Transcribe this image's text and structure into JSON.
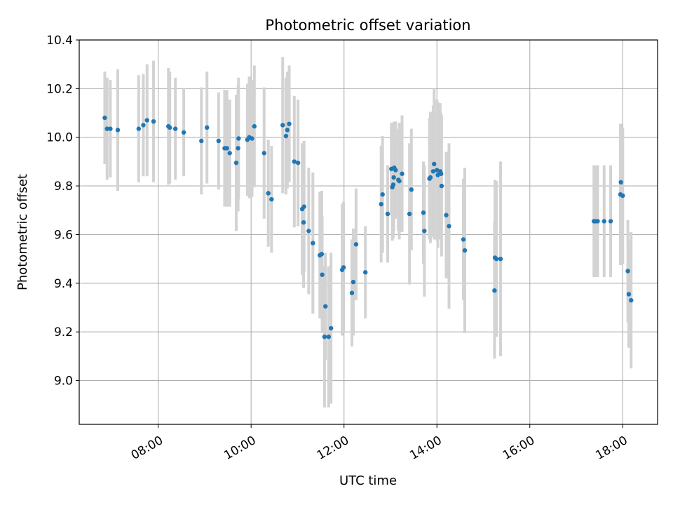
{
  "chart_data": {
    "type": "scatter",
    "title": "Photometric offset variation",
    "xlabel": "UTC time",
    "ylabel": "Photometric offset",
    "x_unit": "hours UTC",
    "xlim": [
      6.3,
      18.75
    ],
    "ylim": [
      8.82,
      10.4
    ],
    "x_ticks": [
      {
        "value": 8,
        "label": "08:00"
      },
      {
        "value": 10,
        "label": "10:00"
      },
      {
        "value": 12,
        "label": "12:00"
      },
      {
        "value": 14,
        "label": "14:00"
      },
      {
        "value": 16,
        "label": "16:00"
      },
      {
        "value": 18,
        "label": "18:00"
      }
    ],
    "y_ticks": [
      {
        "value": 9.0,
        "label": "9.0"
      },
      {
        "value": 9.2,
        "label": "9.2"
      },
      {
        "value": 9.4,
        "label": "9.4"
      },
      {
        "value": 9.6,
        "label": "9.6"
      },
      {
        "value": 9.8,
        "label": "9.8"
      },
      {
        "value": 10.0,
        "label": "10.0"
      },
      {
        "value": 10.2,
        "label": "10.2"
      },
      {
        "value": 10.4,
        "label": "10.4"
      }
    ],
    "grid": true,
    "point_color": "#1f77b4",
    "errorbar_color": "#d3d3d3",
    "points": [
      [
        6.85,
        10.08,
        0.19
      ],
      [
        6.9,
        10.035,
        0.21
      ],
      [
        6.97,
        10.035,
        0.2
      ],
      [
        7.13,
        10.03,
        0.25
      ],
      [
        7.58,
        10.035,
        0.22
      ],
      [
        7.68,
        10.05,
        0.21
      ],
      [
        7.76,
        10.07,
        0.23
      ],
      [
        7.9,
        10.065,
        0.25
      ],
      [
        8.22,
        10.045,
        0.24
      ],
      [
        8.25,
        10.04,
        0.23
      ],
      [
        8.37,
        10.035,
        0.21
      ],
      [
        8.55,
        10.02,
        0.18
      ],
      [
        8.93,
        9.985,
        0.22
      ],
      [
        9.05,
        10.04,
        0.23
      ],
      [
        9.3,
        9.985,
        0.2
      ],
      [
        9.43,
        9.955,
        0.24
      ],
      [
        9.48,
        9.955,
        0.24
      ],
      [
        9.54,
        9.935,
        0.22
      ],
      [
        9.68,
        9.895,
        0.28
      ],
      [
        9.72,
        9.955,
        0.26
      ],
      [
        9.73,
        9.995,
        0.25
      ],
      [
        9.92,
        9.99,
        0.23
      ],
      [
        9.96,
        10.0,
        0.25
      ],
      [
        10.02,
        9.995,
        0.24
      ],
      [
        10.07,
        10.045,
        0.25
      ],
      [
        10.28,
        9.935,
        0.27
      ],
      [
        10.37,
        9.77,
        0.22
      ],
      [
        10.44,
        9.745,
        0.22
      ],
      [
        10.68,
        10.05,
        0.28
      ],
      [
        10.75,
        10.005,
        0.24
      ],
      [
        10.78,
        10.03,
        0.24
      ],
      [
        10.82,
        10.055,
        0.24
      ],
      [
        10.93,
        9.9,
        0.27
      ],
      [
        11.01,
        9.895,
        0.26
      ],
      [
        11.1,
        9.705,
        0.27
      ],
      [
        11.14,
        9.715,
        0.27
      ],
      [
        11.13,
        9.65,
        0.27
      ],
      [
        11.24,
        9.615,
        0.26
      ],
      [
        11.33,
        9.565,
        0.29
      ],
      [
        11.48,
        9.515,
        0.26
      ],
      [
        11.52,
        9.52,
        0.26
      ],
      [
        11.53,
        9.435,
        0.24
      ],
      [
        11.6,
        9.305,
        0.22
      ],
      [
        11.58,
        9.18,
        0.29
      ],
      [
        11.67,
        9.18,
        0.29
      ],
      [
        11.72,
        9.215,
        0.31
      ],
      [
        11.96,
        9.455,
        0.27
      ],
      [
        11.99,
        9.465,
        0.27
      ],
      [
        12.17,
        9.36,
        0.22
      ],
      [
        12.2,
        9.405,
        0.22
      ],
      [
        12.26,
        9.56,
        0.23
      ],
      [
        12.46,
        9.445,
        0.19
      ],
      [
        12.8,
        9.725,
        0.24
      ],
      [
        12.83,
        9.765,
        0.24
      ],
      [
        12.94,
        9.685,
        0.2
      ],
      [
        13.02,
        9.87,
        0.19
      ],
      [
        13.04,
        9.795,
        0.22
      ],
      [
        13.06,
        9.805,
        0.22
      ],
      [
        13.07,
        9.835,
        0.22
      ],
      [
        13.08,
        9.875,
        0.19
      ],
      [
        13.11,
        9.865,
        0.2
      ],
      [
        13.17,
        9.825,
        0.21
      ],
      [
        13.19,
        9.82,
        0.24
      ],
      [
        13.25,
        9.85,
        0.24
      ],
      [
        13.41,
        9.685,
        0.29
      ],
      [
        13.45,
        9.785,
        0.25
      ],
      [
        13.71,
        9.69,
        0.21
      ],
      [
        13.73,
        9.615,
        0.27
      ],
      [
        13.84,
        9.83,
        0.25
      ],
      [
        13.86,
        9.835,
        0.27
      ],
      [
        13.92,
        9.86,
        0.27
      ],
      [
        13.94,
        9.89,
        0.31
      ],
      [
        14.0,
        9.865,
        0.29
      ],
      [
        14.02,
        9.845,
        0.3
      ],
      [
        14.07,
        9.86,
        0.28
      ],
      [
        14.09,
        9.85,
        0.25
      ],
      [
        14.1,
        9.8,
        0.29
      ],
      [
        14.2,
        9.68,
        0.26
      ],
      [
        14.26,
        9.635,
        0.34
      ],
      [
        14.57,
        9.58,
        0.25
      ],
      [
        14.6,
        9.535,
        0.34
      ],
      [
        15.24,
        9.37,
        0.28
      ],
      [
        15.25,
        9.505,
        0.32
      ],
      [
        15.28,
        9.5,
        0.32
      ],
      [
        15.37,
        9.5,
        0.4
      ],
      [
        17.38,
        9.655,
        0.23
      ],
      [
        17.41,
        9.655,
        0.23
      ],
      [
        17.46,
        9.655,
        0.23
      ],
      [
        17.6,
        9.655,
        0.23
      ],
      [
        17.74,
        9.655,
        0.23
      ],
      [
        17.95,
        9.765,
        0.29
      ],
      [
        17.96,
        9.815,
        0.24
      ],
      [
        18.0,
        9.76,
        0.28
      ],
      [
        18.11,
        9.45,
        0.21
      ],
      [
        18.13,
        9.355,
        0.22
      ],
      [
        18.18,
        9.33,
        0.28
      ]
    ]
  }
}
